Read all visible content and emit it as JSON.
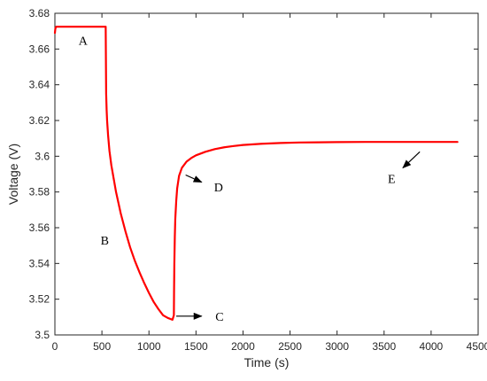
{
  "chart_data": {
    "type": "line",
    "title": "",
    "xlabel": "Time (s)",
    "ylabel": "Voltage (V)",
    "xlim": [
      0,
      4500
    ],
    "ylim": [
      3.5,
      3.68
    ],
    "xticks": [
      0,
      500,
      1000,
      1500,
      2000,
      2500,
      3000,
      3500,
      4000,
      4500
    ],
    "yticks": [
      3.5,
      3.52,
      3.54,
      3.56,
      3.58,
      3.6,
      3.62,
      3.64,
      3.66,
      3.68
    ],
    "xtick_labels": [
      "0",
      "500",
      "1000",
      "1500",
      "2000",
      "2500",
      "3000",
      "3500",
      "4000",
      "4500"
    ],
    "ytick_labels": [
      "3.5",
      "3.52",
      "3.54",
      "3.56",
      "3.58",
      "3.6",
      "3.62",
      "3.64",
      "3.66",
      "3.68"
    ],
    "grid": false,
    "legend": "none",
    "line_color": "#ff0000",
    "series": [
      {
        "x": [
          0,
          5,
          15,
          30,
          60,
          100,
          200,
          300,
          400,
          500,
          540,
          545,
          550,
          555,
          565,
          580,
          600,
          650,
          700,
          750,
          800,
          850,
          900,
          950,
          1000,
          1050,
          1100,
          1150,
          1200,
          1250,
          1265,
          1267,
          1270,
          1275,
          1280,
          1290,
          1300,
          1320,
          1350,
          1400,
          1450,
          1500,
          1600,
          1700,
          1800,
          1900,
          2000,
          2200,
          2400,
          2600,
          2800,
          3000,
          3300,
          3600,
          3900,
          4280
        ],
        "y": [
          3.669,
          3.6715,
          3.6725,
          3.6725,
          3.6725,
          3.6725,
          3.6725,
          3.6725,
          3.6725,
          3.6725,
          3.6725,
          3.635,
          3.626,
          3.62,
          3.612,
          3.603,
          3.595,
          3.58,
          3.568,
          3.558,
          3.549,
          3.5415,
          3.535,
          3.529,
          3.5235,
          3.5185,
          3.5145,
          3.511,
          3.5095,
          3.5085,
          3.511,
          3.525,
          3.54,
          3.555,
          3.565,
          3.575,
          3.582,
          3.589,
          3.5935,
          3.597,
          3.599,
          3.6005,
          3.6025,
          3.604,
          3.605,
          3.6057,
          3.6063,
          3.607,
          3.6074,
          3.6077,
          3.6078,
          3.6079,
          3.608,
          3.608,
          3.608,
          3.608
        ]
      }
    ],
    "annotations": [
      {
        "text": "A",
        "x": 300,
        "y": 3.665,
        "arrow": false
      },
      {
        "text": "B",
        "x": 530,
        "y": 3.553,
        "arrow": false
      },
      {
        "text": "C",
        "x": 1750,
        "y": 3.5105,
        "arrow": true,
        "arrow_from": [
          1290,
          3.5105
        ],
        "arrow_to": [
          1560,
          3.5105
        ]
      },
      {
        "text": "D",
        "x": 1740,
        "y": 3.5827,
        "arrow": true,
        "arrow_from": [
          1390,
          3.5895
        ],
        "arrow_to": [
          1560,
          3.5855
        ]
      },
      {
        "text": "E",
        "x": 3580,
        "y": 3.5875,
        "arrow": true,
        "arrow_from": [
          3880,
          3.6025
        ],
        "arrow_to": [
          3700,
          3.5935
        ]
      }
    ]
  }
}
